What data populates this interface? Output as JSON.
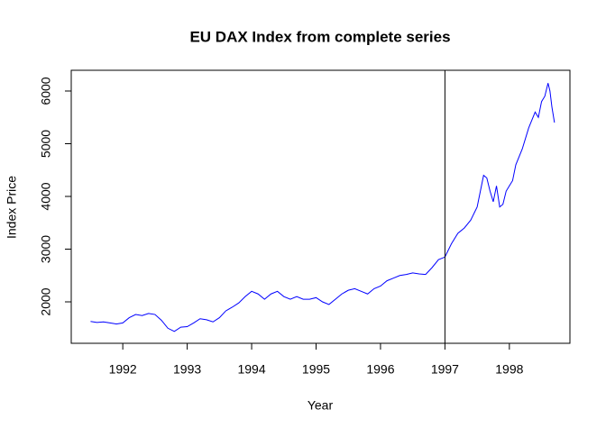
{
  "chart_data": {
    "type": "line",
    "title": "EU DAX Index from complete series",
    "xlabel": "Year",
    "ylabel": "Index Price",
    "x": [
      1991.5,
      1991.6,
      1991.7,
      1991.8,
      1991.9,
      1992.0,
      1992.1,
      1992.2,
      1992.3,
      1992.4,
      1992.5,
      1992.6,
      1992.7,
      1992.8,
      1992.9,
      1993.0,
      1993.1,
      1993.2,
      1993.3,
      1993.4,
      1993.5,
      1993.6,
      1993.7,
      1993.8,
      1993.9,
      1994.0,
      1994.1,
      1994.2,
      1994.3,
      1994.4,
      1994.5,
      1994.6,
      1994.7,
      1994.8,
      1994.9,
      1995.0,
      1995.1,
      1995.2,
      1995.3,
      1995.4,
      1995.5,
      1995.6,
      1995.7,
      1995.8,
      1995.9,
      1996.0,
      1996.1,
      1996.2,
      1996.3,
      1996.4,
      1996.5,
      1996.6,
      1996.7,
      1996.8,
      1996.9,
      1997.0,
      1997.1,
      1997.2,
      1997.3,
      1997.4,
      1997.5,
      1997.55,
      1997.6,
      1997.65,
      1997.7,
      1997.75,
      1997.8,
      1997.85,
      1997.9,
      1997.95,
      1998.0,
      1998.05,
      1998.1,
      1998.2,
      1998.3,
      1998.4,
      1998.45,
      1998.5,
      1998.55,
      1998.6,
      1998.63,
      1998.66,
      1998.7
    ],
    "series": [
      {
        "name": "DAX",
        "color": "#0000ff",
        "values": [
          1628,
          1610,
          1620,
          1600,
          1580,
          1600,
          1700,
          1760,
          1740,
          1780,
          1760,
          1650,
          1500,
          1440,
          1520,
          1530,
          1600,
          1680,
          1660,
          1620,
          1700,
          1830,
          1900,
          1980,
          2100,
          2200,
          2150,
          2050,
          2150,
          2200,
          2100,
          2050,
          2100,
          2050,
          2050,
          2080,
          2000,
          1950,
          2050,
          2150,
          2220,
          2250,
          2200,
          2150,
          2250,
          2300,
          2400,
          2450,
          2500,
          2520,
          2550,
          2530,
          2520,
          2650,
          2800,
          2850,
          3100,
          3300,
          3400,
          3550,
          3800,
          4100,
          4400,
          4350,
          4100,
          3900,
          4200,
          3800,
          3850,
          4100,
          4200,
          4300,
          4600,
          4900,
          5300,
          5600,
          5500,
          5800,
          5900,
          6150,
          6000,
          5700,
          5400
        ]
      }
    ],
    "vline": 1997,
    "xlim": [
      1991.2,
      1998.94
    ],
    "xticks": [
      1992,
      1993,
      1994,
      1995,
      1996,
      1997,
      1998
    ],
    "ylim": [
      1214,
      6393
    ],
    "yticks": [
      2000,
      3000,
      4000,
      5000,
      6000
    ]
  }
}
